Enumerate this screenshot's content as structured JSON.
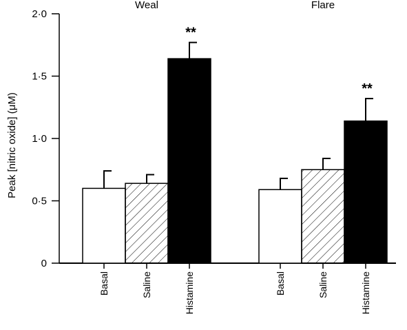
{
  "chart_data": {
    "type": "bar",
    "ylabel": "Peak [nitric oxide] (μM)",
    "ylim": [
      0,
      2.0
    ],
    "yticks": [
      "0",
      "0·5",
      "1·0",
      "1·5",
      "2·0"
    ],
    "ytick_values": [
      0,
      0.5,
      1.0,
      1.5,
      2.0
    ],
    "categories": [
      "Basal",
      "Saline",
      "Histamine"
    ],
    "fills": {
      "Basal": "open",
      "Saline": "hatched",
      "Histamine": "solid"
    },
    "groups": [
      {
        "name": "Weal",
        "values": [
          0.6,
          0.64,
          1.64
        ],
        "errors": [
          0.14,
          0.07,
          0.13
        ],
        "significance": [
          "",
          "",
          "**"
        ]
      },
      {
        "name": "Flare",
        "values": [
          0.59,
          0.75,
          1.14
        ],
        "errors": [
          0.09,
          0.09,
          0.18
        ],
        "significance": [
          "",
          "",
          "**"
        ]
      }
    ]
  }
}
